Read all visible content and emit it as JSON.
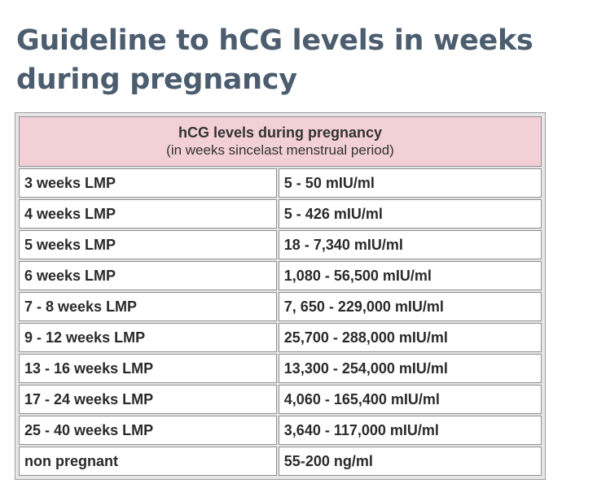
{
  "page": {
    "title": "Guideline to hCG levels in weeks during pregnancy"
  },
  "table": {
    "header_line1": "hCG levels during pregnancy",
    "header_line2": "(in weeks sincelast menstrual period)",
    "rows": [
      {
        "weeks": "3 weeks LMP",
        "level": "5 - 50 mIU/ml"
      },
      {
        "weeks": "4 weeks LMP",
        "level": "5 - 426 mIU/ml"
      },
      {
        "weeks": "5 weeks LMP",
        "level": "18 - 7,340 mIU/ml"
      },
      {
        "weeks": "6 weeks LMP",
        "level": "1,080 - 56,500 mIU/ml"
      },
      {
        "weeks": "7 - 8 weeks LMP",
        "level": "7, 650 - 229,000 mIU/ml"
      },
      {
        "weeks": "9 - 12 weeks LMP",
        "level": "25,700 - 288,000 mIU/ml"
      },
      {
        "weeks": "13 - 16 weeks LMP",
        "level": "13,300 - 254,000 mIU/ml"
      },
      {
        "weeks": "17 - 24 weeks LMP",
        "level": "4,060 - 165,400 mIU/ml"
      },
      {
        "weeks": "25 - 40 weeks LMP",
        "level": "3,640 - 117,000 mIU/ml"
      },
      {
        "weeks": "non pregnant",
        "level": "55-200 ng/ml"
      }
    ]
  },
  "colors": {
    "title": "#4b5d6e",
    "header_background": "#f2d0d6"
  }
}
